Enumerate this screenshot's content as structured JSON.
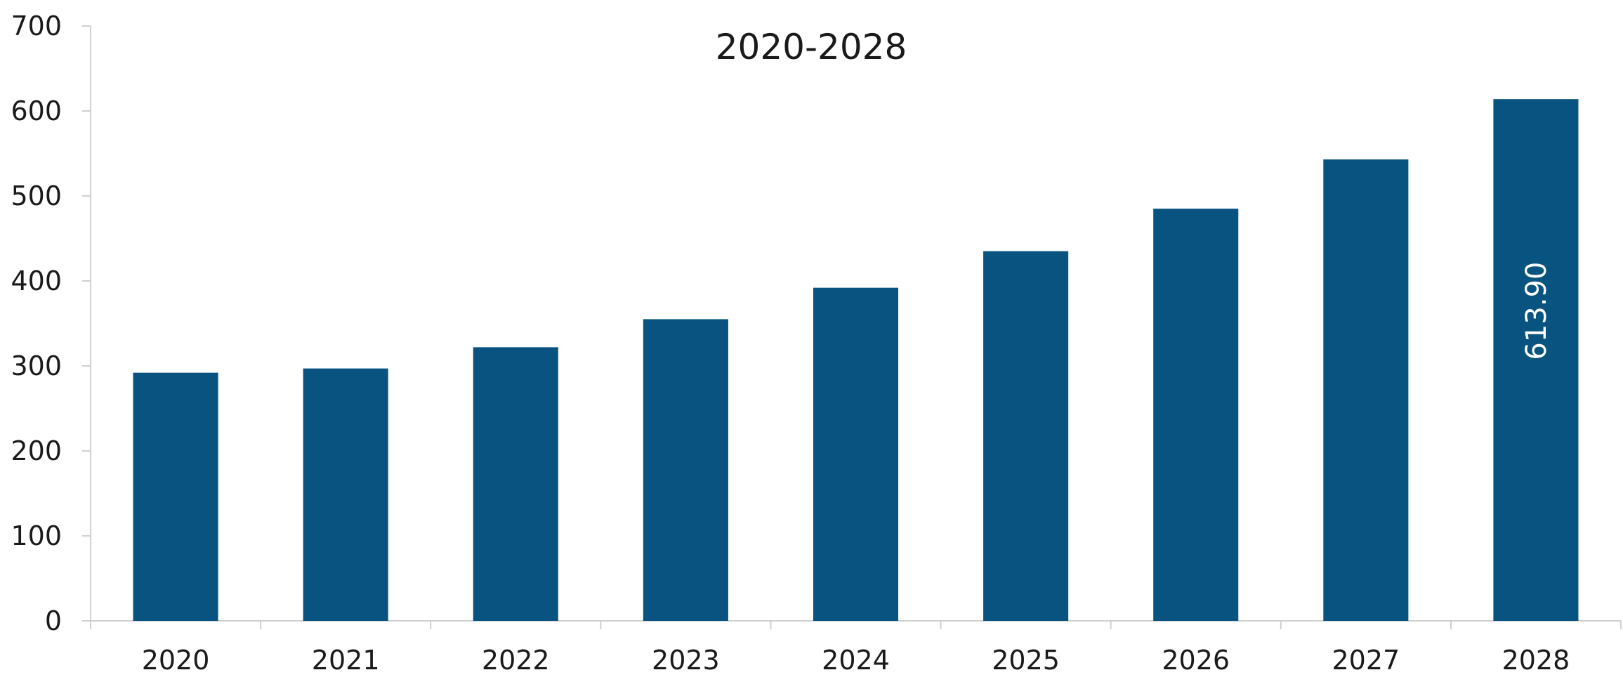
{
  "chart_data": {
    "type": "bar",
    "title": "2020-2028",
    "xlabel": "",
    "ylabel": "",
    "categories": [
      "2020",
      "2021",
      "2022",
      "2023",
      "2024",
      "2025",
      "2026",
      "2027",
      "2028"
    ],
    "values": [
      292,
      297,
      322,
      355,
      392,
      435,
      485,
      543,
      613.9
    ],
    "ylim": [
      0,
      700
    ],
    "yticks": [
      "0",
      "100",
      "200",
      "300",
      "400",
      "500",
      "600",
      "700"
    ],
    "bar_color": "#08537f",
    "axis_color": "#d0d0d0",
    "grid": false,
    "legend": "none",
    "data_labels": [
      {
        "category": "2028",
        "text": "613.90"
      }
    ]
  }
}
